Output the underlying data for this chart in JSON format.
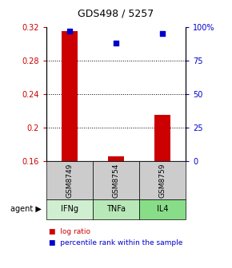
{
  "title": "GDS498 / 5257",
  "categories": [
    "IFNg",
    "TNFa",
    "IL4"
  ],
  "sample_ids": [
    "GSM8749",
    "GSM8754",
    "GSM8759"
  ],
  "log_ratio": [
    0.315,
    0.165,
    0.215
  ],
  "percentile_rank": [
    97,
    88,
    95
  ],
  "ylim_left": [
    0.16,
    0.32
  ],
  "ylim_right": [
    0,
    100
  ],
  "yticks_left": [
    0.16,
    0.2,
    0.24,
    0.28,
    0.32
  ],
  "yticks_right": [
    0,
    25,
    50,
    75,
    100
  ],
  "ytick_labels_right": [
    "0",
    "25",
    "50",
    "75",
    "100%"
  ],
  "bar_color": "#cc0000",
  "dot_color": "#0000cc",
  "agent_colors": [
    "#d0eed0",
    "#b8e8b8",
    "#88dd88"
  ],
  "sample_box_color": "#cccccc",
  "legend_bar_label": "log ratio",
  "legend_dot_label": "percentile rank within the sample",
  "left_axis_color": "#cc0000",
  "right_axis_color": "#0000cc"
}
